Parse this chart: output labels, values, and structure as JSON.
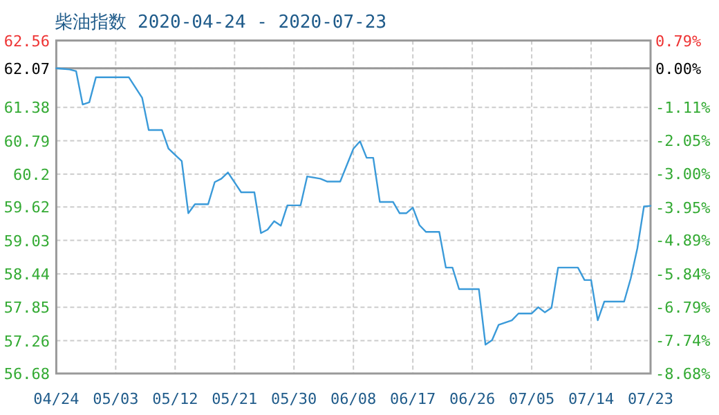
{
  "chart_data": {
    "type": "line",
    "title": "柴油指数 2020-04-24 - 2020-07-23",
    "x": [
      "2020-04-24",
      "2020-04-25",
      "2020-04-26",
      "2020-04-27",
      "2020-04-28",
      "2020-04-29",
      "2020-04-30",
      "2020-05-05",
      "2020-05-07",
      "2020-05-08",
      "2020-05-10",
      "2020-05-11",
      "2020-05-13",
      "2020-05-14",
      "2020-05-15",
      "2020-05-17",
      "2020-05-18",
      "2020-05-19",
      "2020-05-20",
      "2020-05-22",
      "2020-05-24",
      "2020-05-25",
      "2020-05-26",
      "2020-05-27",
      "2020-05-28",
      "2020-05-29",
      "2020-05-31",
      "2020-06-01",
      "2020-06-03",
      "2020-06-04",
      "2020-06-06",
      "2020-06-08",
      "2020-06-09",
      "2020-06-10",
      "2020-06-11",
      "2020-06-12",
      "2020-06-14",
      "2020-06-15",
      "2020-06-16",
      "2020-06-17",
      "2020-06-18",
      "2020-06-19",
      "2020-06-21",
      "2020-06-22",
      "2020-06-23",
      "2020-06-24",
      "2020-06-27",
      "2020-06-28",
      "2020-06-29",
      "2020-06-30",
      "2020-07-02",
      "2020-07-03",
      "2020-07-05",
      "2020-07-06",
      "2020-07-07",
      "2020-07-08",
      "2020-07-09",
      "2020-07-12",
      "2020-07-13",
      "2020-07-14",
      "2020-07-15",
      "2020-07-16",
      "2020-07-19",
      "2020-07-20",
      "2020-07-21",
      "2020-07-22",
      "2020-07-23"
    ],
    "series": [
      {
        "color": "#3a9ad9",
        "values": [
          62.07,
          62.06,
          62.05,
          62.02,
          61.43,
          61.47,
          61.91,
          61.91,
          61.55,
          60.98,
          60.98,
          60.65,
          60.43,
          59.51,
          59.67,
          59.67,
          60.06,
          60.12,
          60.23,
          59.88,
          59.88,
          59.16,
          59.22,
          59.37,
          59.29,
          59.65,
          59.65,
          60.16,
          60.12,
          60.07,
          60.07,
          60.65,
          60.78,
          60.49,
          60.49,
          59.71,
          59.71,
          59.51,
          59.51,
          59.61,
          59.3,
          59.18,
          59.18,
          58.55,
          58.55,
          58.17,
          58.17,
          57.19,
          57.27,
          57.54,
          57.62,
          57.74,
          57.74,
          57.85,
          57.76,
          57.84,
          58.55,
          58.55,
          58.33,
          58.33,
          57.62,
          57.95,
          57.95,
          58.36,
          58.89,
          59.63,
          59.64
        ]
      }
    ],
    "xlim": [
      "2020-04-24",
      "2020-07-23"
    ],
    "xticks": [
      {
        "value": "2020-04-24",
        "label": "04/24"
      },
      {
        "value": "2020-05-03",
        "label": "05/03"
      },
      {
        "value": "2020-05-12",
        "label": "05/12"
      },
      {
        "value": "2020-05-21",
        "label": "05/21"
      },
      {
        "value": "2020-05-30",
        "label": "05/30"
      },
      {
        "value": "2020-06-08",
        "label": "06/08"
      },
      {
        "value": "2020-06-17",
        "label": "06/17"
      },
      {
        "value": "2020-06-26",
        "label": "06/26"
      },
      {
        "value": "2020-07-05",
        "label": "07/05"
      },
      {
        "value": "2020-07-14",
        "label": "07/14"
      },
      {
        "value": "2020-07-23",
        "label": "07/23"
      }
    ],
    "ylim": [
      56.68,
      62.56
    ],
    "yticks": [
      56.68,
      57.26,
      57.85,
      58.44,
      59.03,
      59.62,
      60.2,
      60.79,
      61.38,
      62.07,
      62.56
    ],
    "y2lim": [
      -8.68,
      0.79
    ],
    "y2ticks": [
      {
        "value": -8.68,
        "label": "-8.68%"
      },
      {
        "value": -7.74,
        "label": "-7.74%"
      },
      {
        "value": -6.79,
        "label": "-6.79%"
      },
      {
        "value": -5.84,
        "label": "-5.84%"
      },
      {
        "value": -4.89,
        "label": "-4.89%"
      },
      {
        "value": -3.95,
        "label": "-3.95%"
      },
      {
        "value": -3.0,
        "label": "-3.00%"
      },
      {
        "value": -2.05,
        "label": "-2.05%"
      },
      {
        "value": -1.11,
        "label": "-1.11%"
      },
      {
        "value": 0,
        "label": "0.00%"
      },
      {
        "value": 0.79,
        "label": "0.79%"
      }
    ],
    "ref_lines": [
      {
        "axis": "y",
        "value": 62.07,
        "color": "#999999"
      }
    ],
    "grid": true,
    "line_style": "solid"
  }
}
